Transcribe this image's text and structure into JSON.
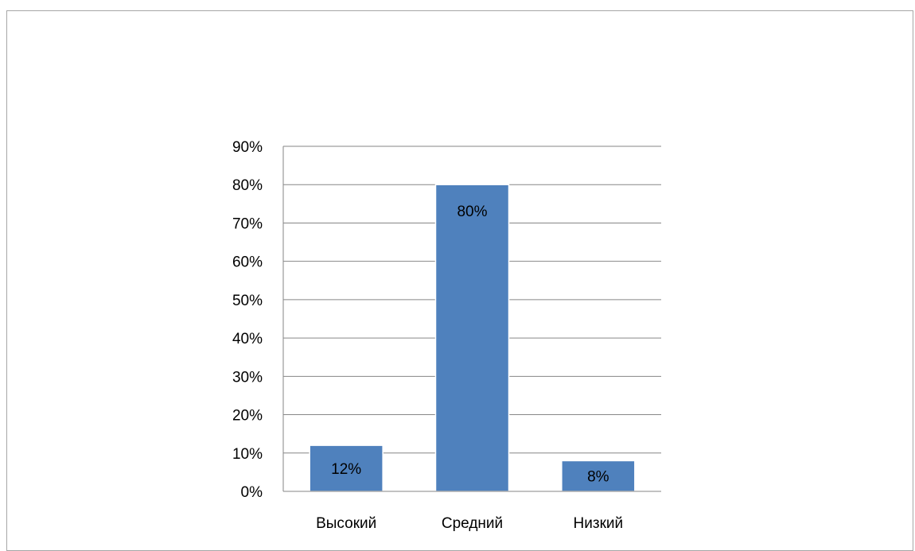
{
  "chart_data": {
    "type": "bar",
    "categories": [
      "Высокий",
      "Средний",
      "Низкий"
    ],
    "values": [
      12,
      80,
      8
    ],
    "data_labels": [
      "12%",
      "80%",
      "8%"
    ],
    "y_ticks": [
      "0%",
      "10%",
      "20%",
      "30%",
      "40%",
      "50%",
      "60%",
      "70%",
      "80%",
      "90%"
    ],
    "title": "",
    "xlabel": "",
    "ylabel": "",
    "ylim": [
      0,
      90
    ],
    "grid": true,
    "legend": "none",
    "colors": {
      "bar": "#4f81bd",
      "bar_edge": "#ffffff",
      "grid": "#868686",
      "frame": "#a6a6a6"
    }
  }
}
